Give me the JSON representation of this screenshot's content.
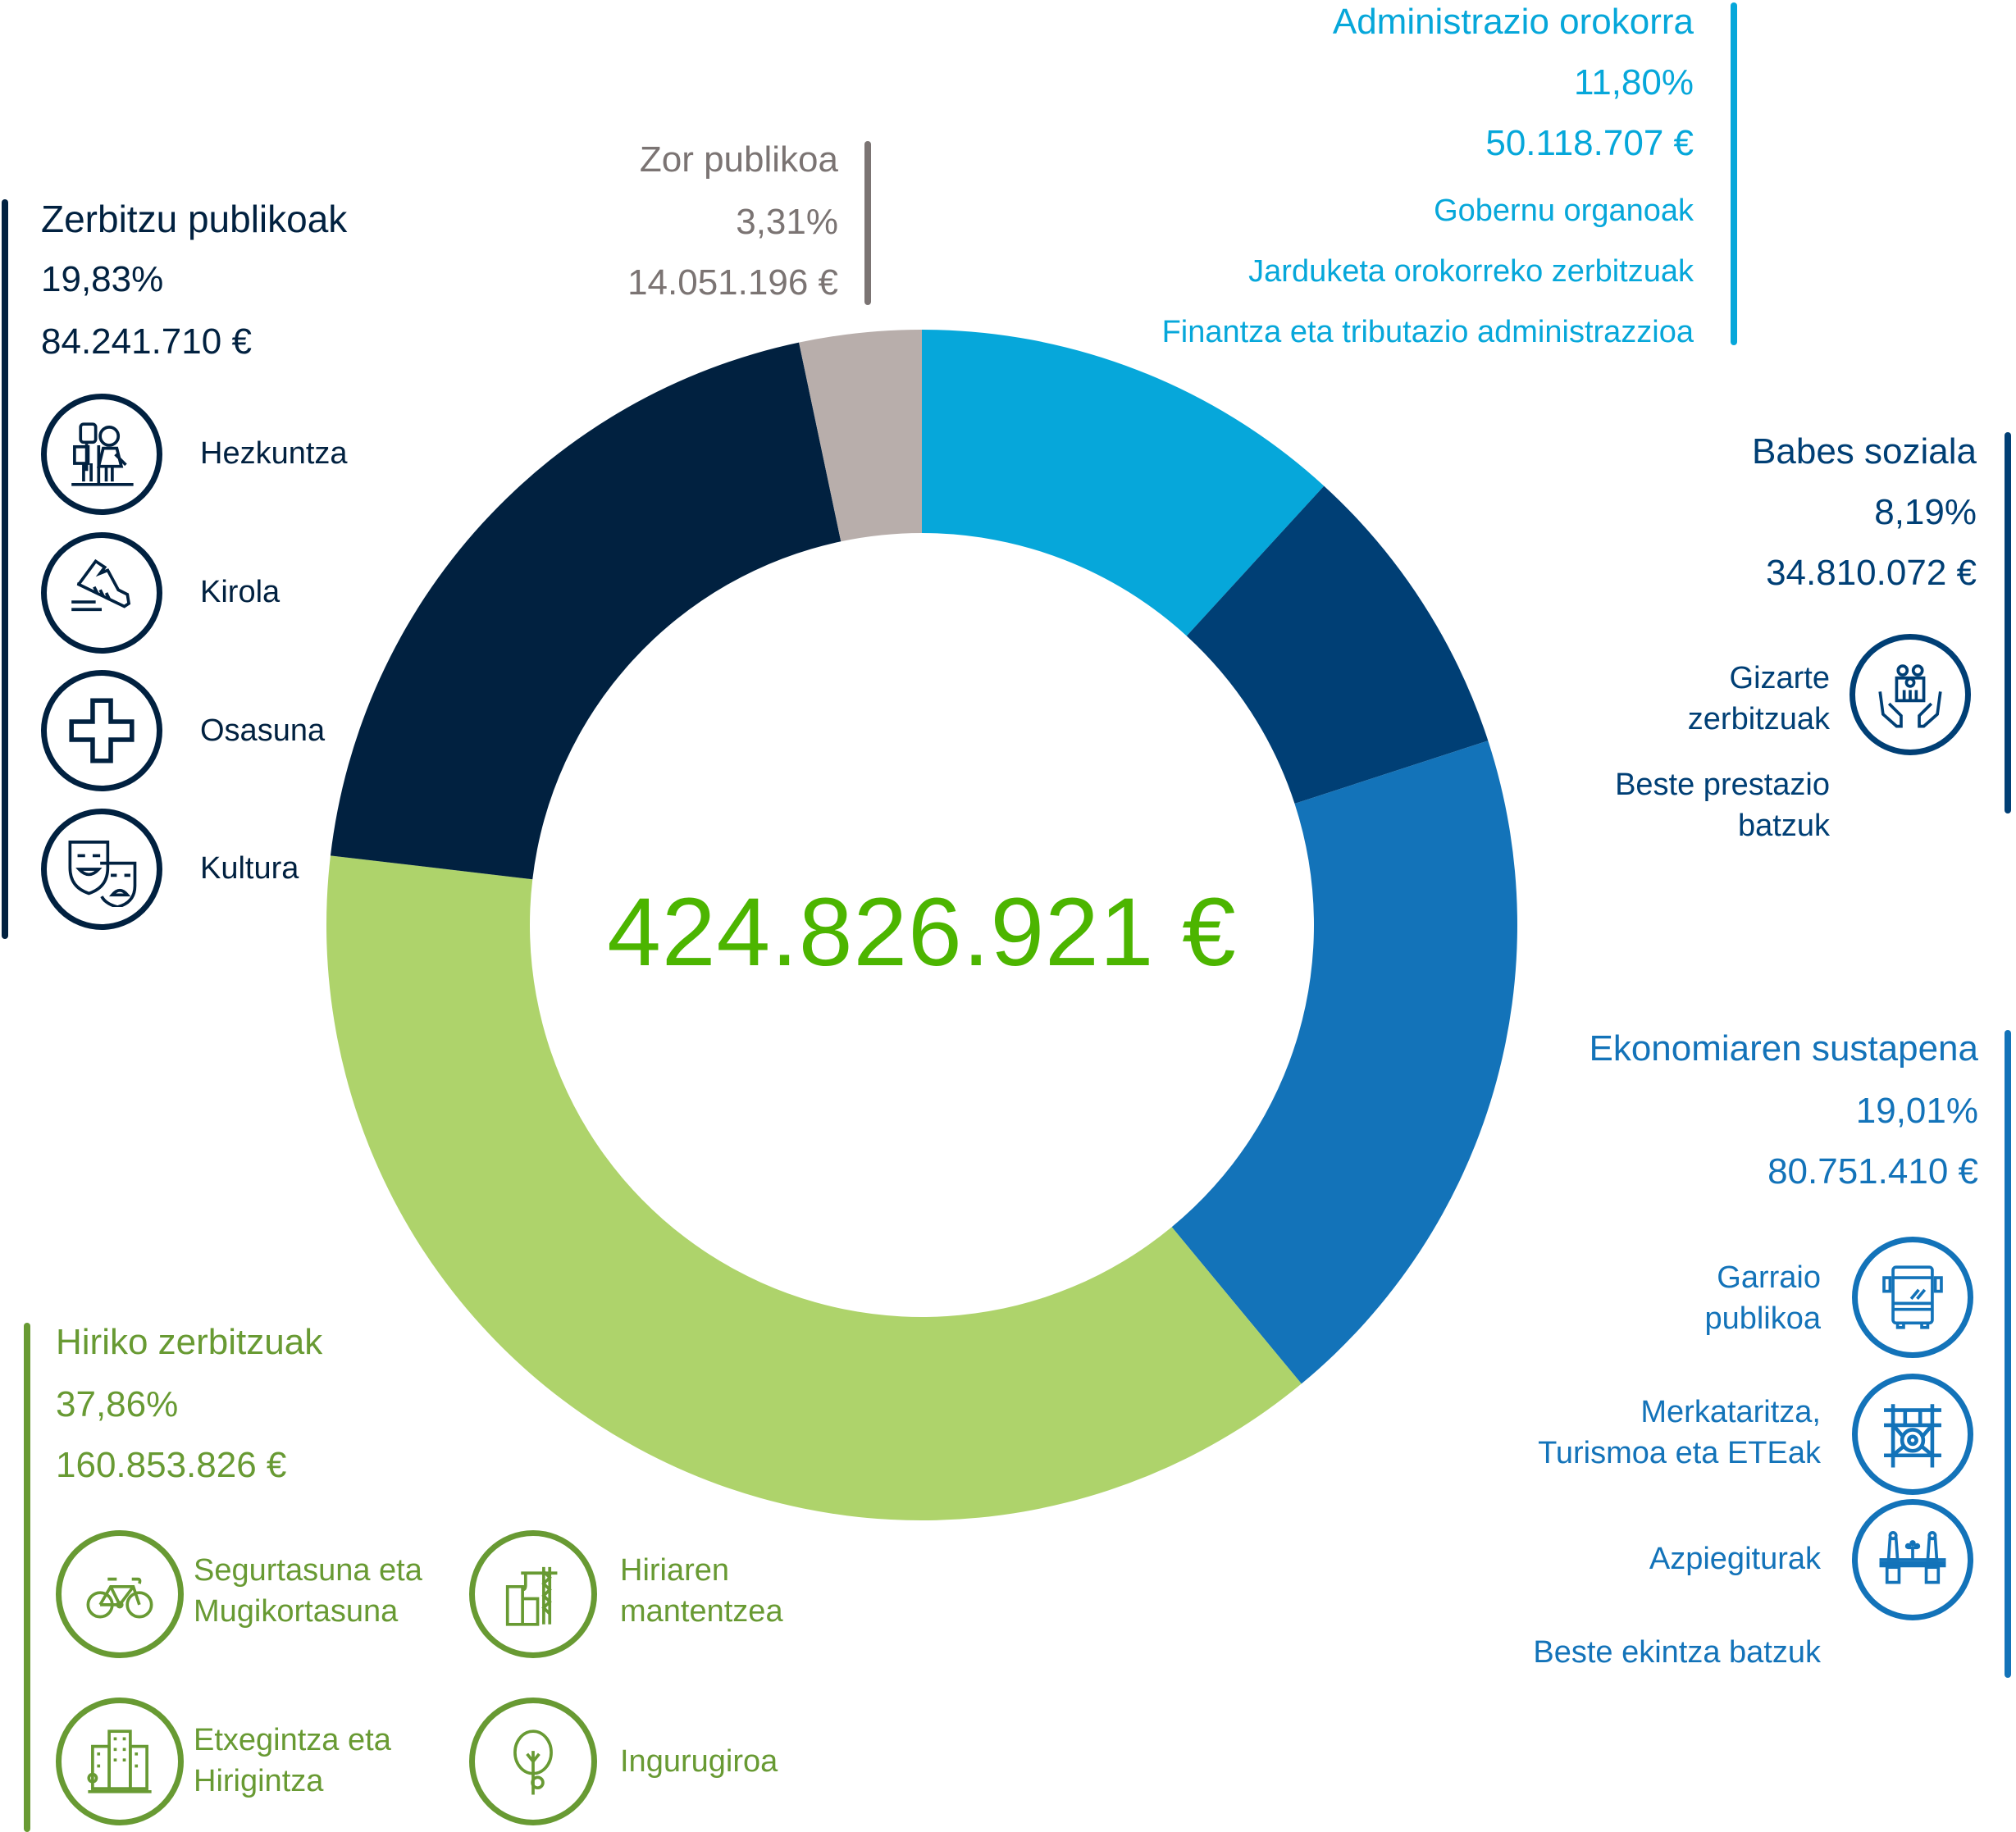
{
  "total": "424.826.921 €",
  "colors": {
    "admin": "#06a7da",
    "babes": "#003f75",
    "ekonomia": "#1373b9",
    "hiriko_slice": "#aed36b",
    "hiriko_text": "#689a33",
    "zerbitzu": "#012140",
    "zor_slice": "#b8aeab",
    "zor_text": "#7b7473",
    "total": "#4cb500"
  },
  "categories": {
    "admin": {
      "title": "Administrazio orokorra",
      "pct": "11,80%",
      "amount": "50.118.707 €",
      "items": [
        "Gobernu organoak",
        "Jarduketa orokorreko zerbitzuak",
        "Finantza eta tributazio administrazzioa"
      ]
    },
    "zor": {
      "title": "Zor publikoa",
      "pct": "3,31%",
      "amount": "14.051.196 €"
    },
    "zerbitzu": {
      "title": "Zerbitzu publikoak",
      "pct": "19,83%",
      "amount": "84.241.710 €",
      "items": [
        {
          "label": "Hezkuntza",
          "icon": "children-icon"
        },
        {
          "label": "Kirola",
          "icon": "sneaker-icon"
        },
        {
          "label": "Osasuna",
          "icon": "medical-cross-icon"
        },
        {
          "label": "Kultura",
          "icon": "theater-masks-icon"
        }
      ]
    },
    "babes": {
      "title": "Babes soziala",
      "pct": "8,19%",
      "amount": "34.810.072 €",
      "items": [
        {
          "label_1": "Gizarte",
          "label_2": "zerbitzuak",
          "icon": "hands-family-icon"
        },
        {
          "label_1": "Beste prestazio",
          "label_2": "batzuk"
        }
      ]
    },
    "ekonomia": {
      "title": "Ekonomiaren sustapena",
      "pct": "19,01%",
      "amount": "80.751.410 €",
      "items": [
        {
          "label_1": "Garraio",
          "label_2": "publikoa",
          "icon": "bus-icon"
        },
        {
          "label_1": "Merkataritza,",
          "label_2": "Turismoa eta ETEak",
          "icon": "market-gate-icon"
        },
        {
          "label_1": "Azpiegiturak",
          "icon": "bridge-icon"
        },
        {
          "label_1": "Beste ekintza batzuk"
        }
      ]
    },
    "hiriko": {
      "title": "Hiriko zerbitzuak",
      "pct": "37,86%",
      "amount": "160.853.826 €",
      "items": [
        {
          "label_1": "Segurtasuna eta",
          "label_2": "Mugikortasuna",
          "icon": "bicycle-icon"
        },
        {
          "label_1": "Hiriaren",
          "label_2": "mantentzea",
          "icon": "crane-icon"
        },
        {
          "label_1": "Etxegintza eta",
          "label_2": "Hirigintza",
          "icon": "buildings-icon"
        },
        {
          "label_1": "Ingurugiroa",
          "icon": "tree-icon"
        }
      ]
    }
  },
  "chart_data": {
    "type": "pie",
    "subtype": "donut",
    "title": "",
    "center_label": "424.826.921 €",
    "start_angle": "12 o'clock, clockwise",
    "categories": [
      "Administrazio orokorra",
      "Babes soziala",
      "Ekonomiaren sustapena",
      "Hiriko zerbitzuak",
      "Zerbitzu publikoak",
      "Zor publikoa"
    ],
    "values": [
      11.8,
      8.19,
      19.01,
      37.86,
      19.83,
      3.31
    ],
    "amounts_eur": [
      50118707,
      34810072,
      80751410,
      160853826,
      84241710,
      14051196
    ],
    "colors": [
      "#06a7da",
      "#003f75",
      "#1373b9",
      "#aed36b",
      "#012140",
      "#b8aeab"
    ],
    "total_eur": 424826921,
    "legend": "none (callout labels around chart)"
  }
}
